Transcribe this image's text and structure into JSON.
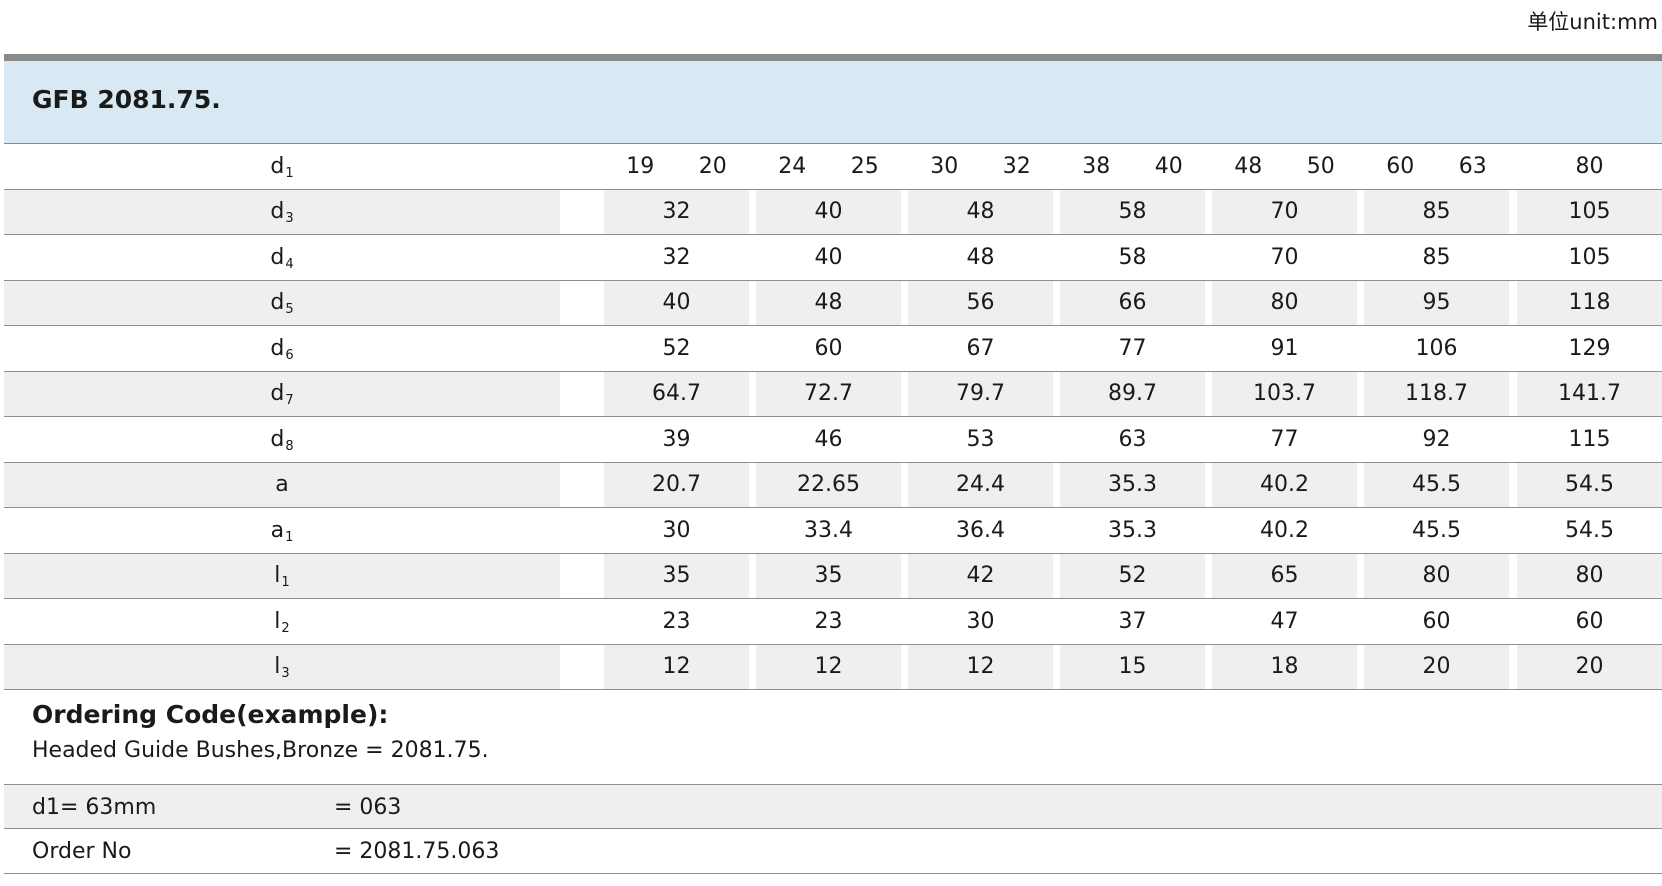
{
  "unit_label": "单位unit:mm",
  "title": "GFB 2081.75.",
  "header": {
    "label": "d",
    "sub": "1",
    "pairs": [
      [
        "19",
        "20"
      ],
      [
        "24",
        "25"
      ],
      [
        "30",
        "32"
      ],
      [
        "38",
        "40"
      ],
      [
        "48",
        "50"
      ],
      [
        "60",
        "63"
      ],
      [
        "80"
      ]
    ]
  },
  "rows": [
    {
      "label": "d",
      "sub": "3",
      "values": [
        "32",
        "40",
        "48",
        "58",
        "70",
        "85",
        "105"
      ]
    },
    {
      "label": "d",
      "sub": "4",
      "values": [
        "32",
        "40",
        "48",
        "58",
        "70",
        "85",
        "105"
      ]
    },
    {
      "label": "d",
      "sub": "5",
      "values": [
        "40",
        "48",
        "56",
        "66",
        "80",
        "95",
        "118"
      ]
    },
    {
      "label": "d",
      "sub": "6",
      "values": [
        "52",
        "60",
        "67",
        "77",
        "91",
        "106",
        "129"
      ]
    },
    {
      "label": "d",
      "sub": "7",
      "values": [
        "64.7",
        "72.7",
        "79.7",
        "89.7",
        "103.7",
        "118.7",
        "141.7"
      ]
    },
    {
      "label": "d",
      "sub": "8",
      "values": [
        "39",
        "46",
        "53",
        "63",
        "77",
        "92",
        "115"
      ]
    },
    {
      "label": "a",
      "sub": "",
      "values": [
        "20.7",
        "22.65",
        "24.4",
        "35.3",
        "40.2",
        "45.5",
        "54.5"
      ]
    },
    {
      "label": "a",
      "sub": "1",
      "values": [
        "30",
        "33.4",
        "36.4",
        "35.3",
        "40.2",
        "45.5",
        "54.5"
      ]
    },
    {
      "label": "l",
      "sub": "1",
      "values": [
        "35",
        "35",
        "42",
        "52",
        "65",
        "80",
        "80"
      ]
    },
    {
      "label": "l",
      "sub": "2",
      "values": [
        "23",
        "23",
        "30",
        "37",
        "47",
        "60",
        "60"
      ]
    },
    {
      "label": "l",
      "sub": "3",
      "values": [
        "12",
        "12",
        "12",
        "15",
        "18",
        "20",
        "20"
      ]
    }
  ],
  "ordering": {
    "title": "Ordering Code(example):",
    "description": "Headed Guide Bushes,Bronze  = 2081.75.",
    "lines": [
      {
        "key": "d1= 63mm",
        "value": "=  063"
      },
      {
        "key": "Order No",
        "value": "=  2081.75.063"
      }
    ]
  }
}
